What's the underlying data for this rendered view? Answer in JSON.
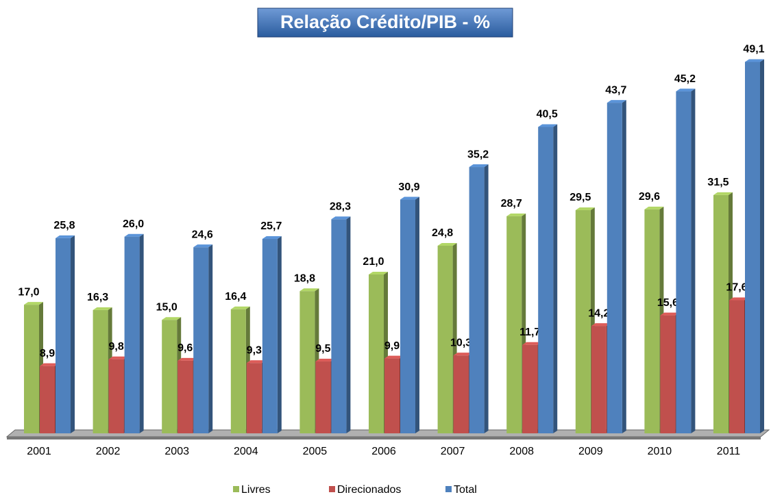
{
  "chart_data": {
    "type": "bar3d",
    "title": "Relação Crédito/PIB - %",
    "categories": [
      "2001",
      "2002",
      "2003",
      "2004",
      "2005",
      "2006",
      "2007",
      "2008",
      "2009",
      "2010",
      "2011"
    ],
    "series": [
      {
        "name": "Livres",
        "color": "#9bbb59",
        "values": [
          17.0,
          16.3,
          15.0,
          16.4,
          18.8,
          21.0,
          24.8,
          28.7,
          29.5,
          29.6,
          31.5
        ],
        "value_labels": [
          "17,0",
          "16,3",
          "15,0",
          "16,4",
          "18,8",
          "21,0",
          "24,8",
          "28,7",
          "29,5",
          "29,6",
          "31,5"
        ]
      },
      {
        "name": "Direcionados",
        "color": "#c0504d",
        "values": [
          8.9,
          9.8,
          9.6,
          9.3,
          9.5,
          9.9,
          10.3,
          11.7,
          14.2,
          15.6,
          17.6
        ],
        "value_labels": [
          "8,9",
          "9,8",
          "9,6",
          "9,3",
          "9,5",
          "9,9",
          "10,3",
          "11,7",
          "14,2",
          "15,6",
          "17,6"
        ]
      },
      {
        "name": "Total",
        "color": "#4f81bd",
        "values": [
          25.8,
          26.0,
          24.6,
          25.7,
          28.3,
          30.9,
          35.2,
          40.5,
          43.7,
          45.2,
          49.1
        ],
        "value_labels": [
          "25,8",
          "26,0",
          "24,6",
          "25,7",
          "28,3",
          "30,9",
          "35,2",
          "40,5",
          "43,7",
          "45,2",
          "49,1"
        ]
      }
    ]
  }
}
